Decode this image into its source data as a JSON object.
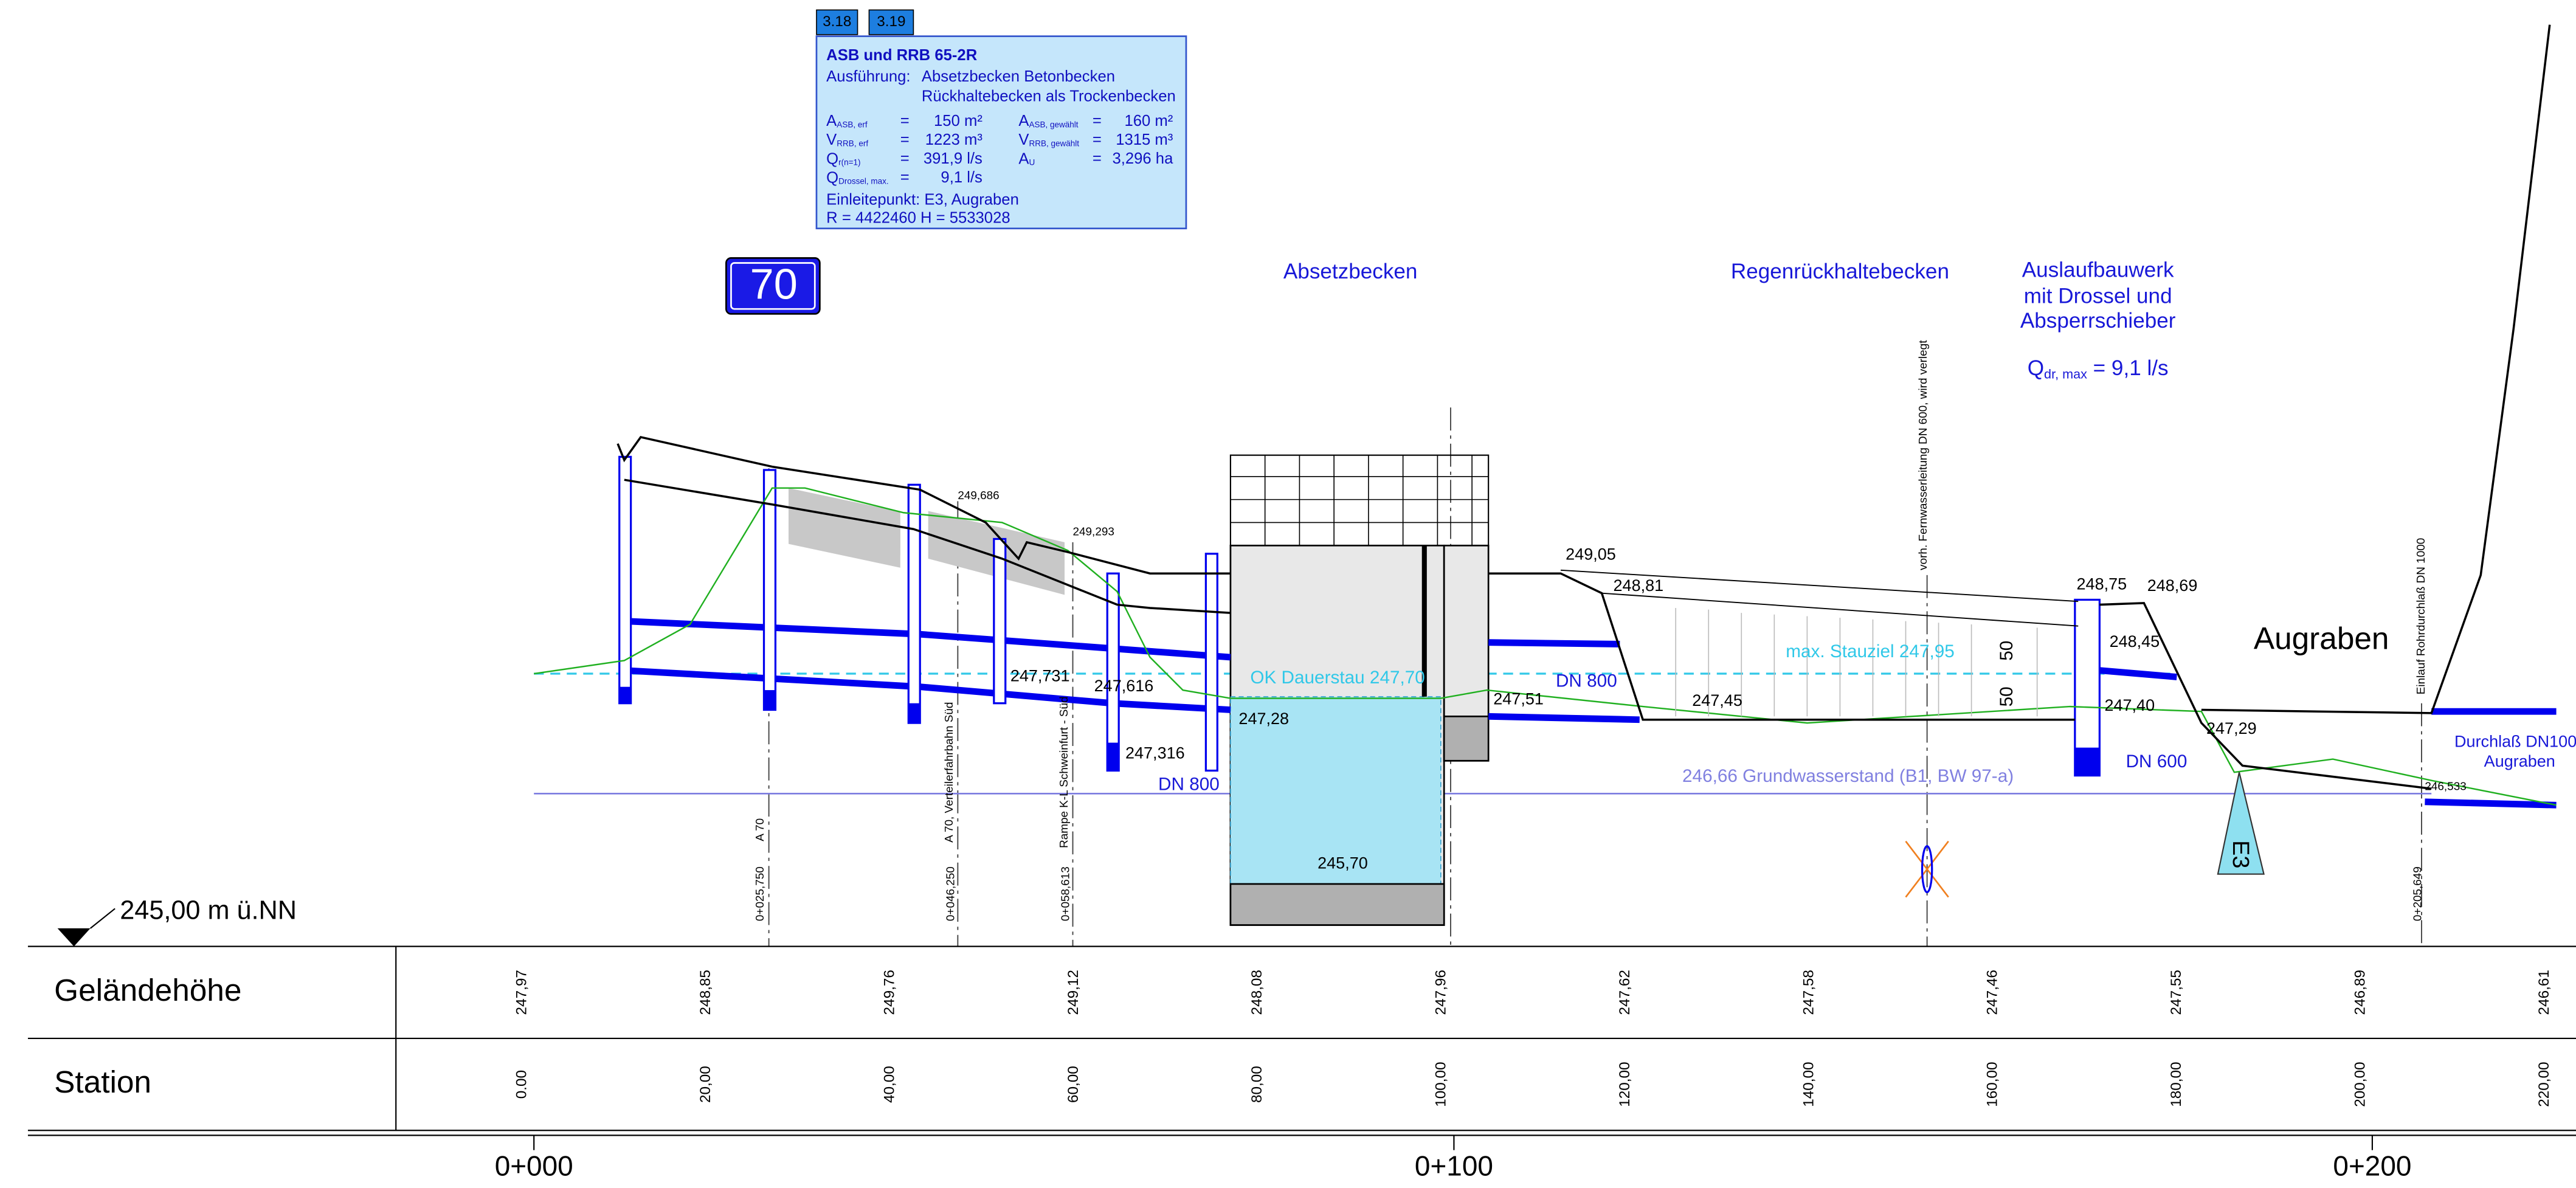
{
  "tags": [
    "3.18",
    "3.19"
  ],
  "info": {
    "title": "ASB und RRB 65-2R",
    "ausfuehrung": "Ausführung:",
    "lines": [
      "Absetzbecken Betonbecken",
      "Rückhaltebecken als Trockenbecken"
    ],
    "params": [
      {
        "symbol": "A",
        "sub": "ASB, erf",
        "eq": "=",
        "value": "150 m²"
      },
      {
        "symbol": "A",
        "sub": "ASB, gewählt",
        "eq": "=",
        "value": "160 m²"
      },
      {
        "symbol": "V",
        "sub": "RRB, erf",
        "eq": "=",
        "value": "1223 m³"
      },
      {
        "symbol": "V",
        "sub": "RRB, gewählt",
        "eq": "=",
        "value": "1315 m³"
      },
      {
        "symbol": "Q",
        "sub": "r(n=1)",
        "eq": "=",
        "value": "391,9 l/s"
      },
      {
        "symbol": "A",
        "sub": "U",
        "eq": "=",
        "value": "3,296 ha"
      },
      {
        "symbol": "Q",
        "sub": "Drossel, max.",
        "eq": "=",
        "value": "9,1 l/s"
      }
    ],
    "einleitung": "Einleitepunkt: E3, Augraben",
    "coords": "R = 4422460     H =  5533028"
  },
  "shield": "70",
  "labels": [
    "Absetzbecken",
    "Regenrückhaltebecken",
    "Auslaufbauwerk",
    "mit Drossel und",
    "Absperrschieber",
    "Augraben",
    "249,686",
    "249,293",
    "247,731",
    "247,616",
    "247,28",
    "247,316",
    "245,70",
    "249,05",
    "248,81",
    "247,51",
    "247,45",
    "248,75",
    "248,69",
    "248,45",
    "247,40",
    "247,29",
    "246,533",
    "DN 800",
    "DN 800",
    "DN 600",
    "Durchlaß DN1000",
    "Augraben",
    "OK Dauerstau 247,70",
    "max. Stauziel 247,95",
    "246,66 Grundwasserstand  (B1, BW 97-a)",
    "245,00 m ü.NN"
  ],
  "qdr": {
    "symbol": "Q",
    "sub": "dr, max",
    "rest": " = 9,1 l/s"
  },
  "vertical_labels": [
    "A 70",
    "A 70, Verteilerfahrbahn Süd",
    "Rampe K-L Schweinfurt - Süd",
    "vorh. Fernwasserleitung DN 600, wird verlegt",
    "Einlauf Rohrdurchlaß DN 1000",
    "0+025,750",
    "0+046,250",
    "0+058,613",
    "0+205,649",
    "50",
    "50",
    "E3"
  ],
  "table": {
    "rows": [
      {
        "label": "Geländehöhe",
        "values": [
          "247,97",
          "248,85",
          "249,76",
          "249,12",
          "248,08",
          "247,96",
          "247,62",
          "247,58",
          "247,46",
          "247,55",
          "246,89",
          "246,61"
        ]
      },
      {
        "label": "Station",
        "values": [
          "0.00",
          "20,00",
          "40,00",
          "60,00",
          "80,00",
          "100,00",
          "120,00",
          "140,00",
          "160,00",
          "180,00",
          "200,00",
          "220,00"
        ]
      }
    ]
  },
  "stations": [
    "0+000",
    "0+100",
    "0+200"
  ]
}
